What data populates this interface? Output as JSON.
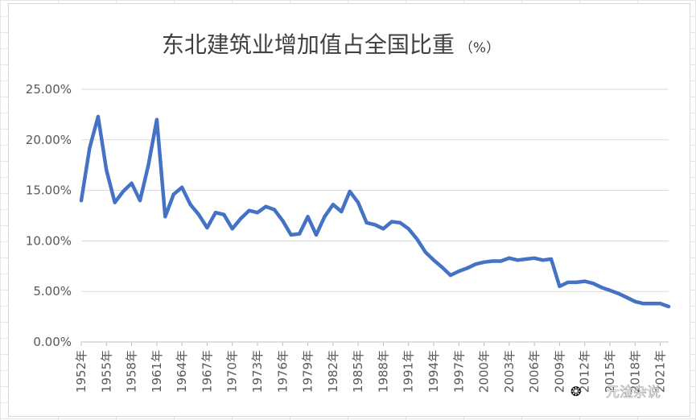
{
  "chart_data": {
    "type": "line",
    "title": "东北建筑业增加值占全国比重",
    "title_unit": "（%）",
    "ylim": [
      0,
      25
    ],
    "y_ticks": [
      "0.00%",
      "5.00%",
      "10.00%",
      "15.00%",
      "20.00%",
      "25.00%"
    ],
    "grid": true,
    "legend": "none",
    "series_color": "#4472c4",
    "x_tick_labels": [
      "1952年",
      "1955年",
      "1958年",
      "1961年",
      "1964年",
      "1967年",
      "1970年",
      "1973年",
      "1976年",
      "1979年",
      "1982年",
      "1985年",
      "1988年",
      "1991年",
      "1994年",
      "1997年",
      "2000年",
      "2003年",
      "2006年",
      "2009年",
      "2012年",
      "2015年",
      "2018年",
      "2021年"
    ],
    "series": [
      {
        "x": [
          1952,
          1953,
          1954,
          1955,
          1956,
          1957,
          1958,
          1959,
          1960,
          1961,
          1962,
          1963,
          1964,
          1965,
          1966,
          1967,
          1968,
          1969,
          1970,
          1971,
          1972,
          1973,
          1974,
          1975,
          1976,
          1977,
          1978,
          1979,
          1980,
          1981,
          1982,
          1983,
          1984,
          1985,
          1986,
          1987,
          1988,
          1989,
          1990,
          1991,
          1992,
          1993,
          1994,
          1995,
          1996,
          1997,
          1998,
          1999,
          2000,
          2001,
          2002,
          2003,
          2004,
          2005,
          2006,
          2007,
          2008,
          2009,
          2010,
          2011,
          2012,
          2013,
          2014,
          2015,
          2016,
          2017,
          2018,
          2019,
          2020,
          2021,
          2022
        ],
        "values": [
          14.0,
          19.2,
          22.3,
          17.0,
          13.8,
          14.9,
          15.7,
          14.0,
          17.5,
          22.0,
          12.4,
          14.6,
          15.3,
          13.6,
          12.6,
          11.3,
          12.8,
          12.6,
          11.2,
          12.2,
          13.0,
          12.8,
          13.4,
          13.1,
          12.0,
          10.6,
          10.7,
          12.4,
          10.6,
          12.4,
          13.6,
          12.9,
          14.9,
          13.8,
          11.8,
          11.6,
          11.2,
          11.9,
          11.8,
          11.2,
          10.2,
          8.9,
          8.1,
          7.4,
          6.6,
          7.0,
          7.3,
          7.7,
          7.9,
          8.0,
          8.0,
          8.3,
          8.1,
          8.2,
          8.3,
          8.1,
          8.2,
          5.5,
          5.9,
          5.9,
          6.0,
          5.8,
          5.4,
          5.1,
          4.8,
          4.4,
          4.0,
          3.8,
          3.8,
          3.8,
          3.5
        ]
      }
    ]
  },
  "watermark": {
    "text": "元淦杂说"
  }
}
